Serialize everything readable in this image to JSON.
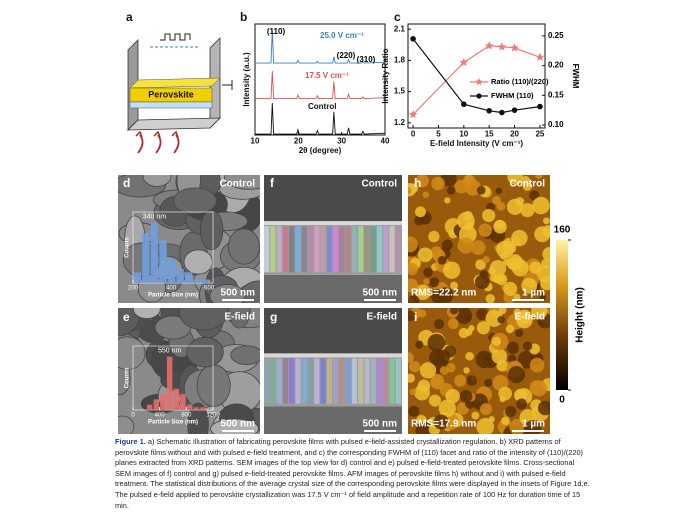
{
  "panel_labels": [
    "a",
    "b",
    "c",
    "d",
    "e",
    "f",
    "g",
    "h",
    "i"
  ],
  "schematic": {
    "label": "Perovskite"
  },
  "images": [
    {
      "label": "Control",
      "scale": "500 nm"
    },
    {
      "label": "Control",
      "scale": "500 nm"
    },
    {
      "label": "Control",
      "rms": "RMS=22.2 nm",
      "scale": "1 µm"
    },
    {
      "label": "E-field",
      "scale": "500 nm"
    },
    {
      "label": "E-field",
      "scale": "500 nm"
    },
    {
      "label": "E-field",
      "rms": "RMS=17.9 nm",
      "scale": "1 µm"
    }
  ],
  "colorbar": {
    "title": "Height (nm)",
    "lim": [
      0,
      160
    ],
    "ticks": [
      0,
      160
    ]
  },
  "caption": {
    "label": "Figure 1.",
    "text": "a) Schematic illustration of fabricating perovskite films with pulsed e-field-assisted crystallization regulation. b) XRD patterns of perovskite films without and with pulsed e-field treatment, and c) the corresponding FWHM of (110) facet and ratio of the intensity of (110)/(220) planes extracted from XRD patterns. SEM images of the top view for d) control and e) pulsed e-field-treated perovskite films. Cross-sectional SEM images of f) control and g) pulsed e-field-treated perovskite films. AFM images of perovskite films h) without and i) with pulsed e-field treatment. The statistical distributions of the average crystal size of the corresponding perovskite films were displayed in the insets of Figure 1d,e. The pulsed e-field applied to perovskite crystallization was 17.5 V cm⁻¹ of field amplitude and a repetition rate of 100 Hz for duration time of 15 min."
  },
  "chart_data": [
    {
      "type": "line",
      "x_label": "2θ (degree)",
      "y_label": "Intensity (a.u.)",
      "annotations": [
        "(110)",
        "(220)",
        "(310)"
      ],
      "x": [
        10,
        13.7,
        14.0,
        14.3,
        19.6,
        19.9,
        20.2,
        24.1,
        24.4,
        24.7,
        27.9,
        28.2,
        28.5,
        31.3,
        31.6,
        31.9,
        34.6,
        34.9,
        35.2,
        40
      ],
      "xlim": [
        10,
        40
      ],
      "xticks": [
        10,
        20,
        30,
        40
      ],
      "ylim": [
        0,
        125
      ],
      "series": [
        {
          "name": "25.0 V cm⁻¹",
          "color": "#3a7fc4",
          "values": [
            81,
            81,
            118,
            81,
            81,
            84,
            81,
            81,
            83,
            81,
            81,
            88,
            81,
            81,
            85,
            81,
            81,
            82,
            81,
            82
          ]
        },
        {
          "name": "17.5 V cm⁻¹",
          "color": "#e05050",
          "values": [
            41,
            41,
            72,
            41,
            41,
            45,
            41,
            41,
            44,
            41,
            41,
            60,
            41,
            41,
            46,
            41,
            41,
            43,
            41,
            42
          ]
        },
        {
          "name": "Control",
          "color": "#111111",
          "values": [
            1,
            1,
            36,
            1,
            1,
            6,
            1,
            1,
            5,
            1,
            1,
            26,
            1,
            1,
            8,
            1,
            1,
            4,
            1,
            2
          ]
        }
      ]
    },
    {
      "type": "line",
      "x_label": "E-field Intensity (V cm⁻¹)",
      "y_label": "Intensity Ratio",
      "y2_label": "FWHM",
      "x": [
        0,
        10,
        15,
        17.5,
        20,
        25
      ],
      "xlim": [
        -1,
        26
      ],
      "xticks": [
        0,
        5,
        10,
        15,
        20,
        25
      ],
      "ylim": [
        1.15,
        2.15
      ],
      "yticks": [
        1.2,
        1.5,
        1.8,
        2.1
      ],
      "y2lim": [
        0.095,
        0.27
      ],
      "y2ticks": [
        {
          "value": 0.1,
          "label": "0.10"
        },
        0.15,
        {
          "value": 0.2,
          "label": "0.20"
        },
        0.25
      ],
      "series": [
        {
          "name": "Ratio (110)/(220)",
          "color": "#f07a7a",
          "marker": "star",
          "values": [
            1.28,
            1.78,
            1.94,
            1.93,
            1.92,
            1.83
          ]
        },
        {
          "name": "FWHM (110)",
          "color": "#111111",
          "marker": "circle",
          "axis": "y2",
          "values": [
            0.245,
            0.135,
            0.124,
            0.121,
            0.125,
            0.131
          ]
        }
      ]
    },
    {
      "type": "histogram",
      "x_label": "Particle Size (nm)",
      "y_label": "Counts",
      "annotation": "340 nm",
      "color": "#6f9fe0",
      "bins": [
        200,
        245,
        290,
        335,
        380,
        425,
        470,
        515,
        560,
        605
      ],
      "values": [
        3,
        14,
        17,
        12,
        7,
        4,
        3,
        1,
        1
      ],
      "xlim": [
        200,
        620
      ],
      "xticks": [
        200,
        400,
        600
      ],
      "ylim": [
        0,
        20
      ]
    },
    {
      "type": "histogram",
      "x_label": "Particle Size (nm)",
      "y_label": "Counts",
      "annotation": "550 nm",
      "color": "#e86a6a",
      "bins": [
        200,
        300,
        400,
        500,
        600,
        700,
        800,
        900,
        1000,
        1100
      ],
      "values": [
        2,
        4,
        6,
        20,
        8,
        6,
        2,
        1,
        1
      ],
      "xlim": [
        0,
        1200
      ],
      "xticks": [
        0,
        400,
        800,
        1200
      ],
      "ylim": [
        0,
        24
      ]
    }
  ]
}
